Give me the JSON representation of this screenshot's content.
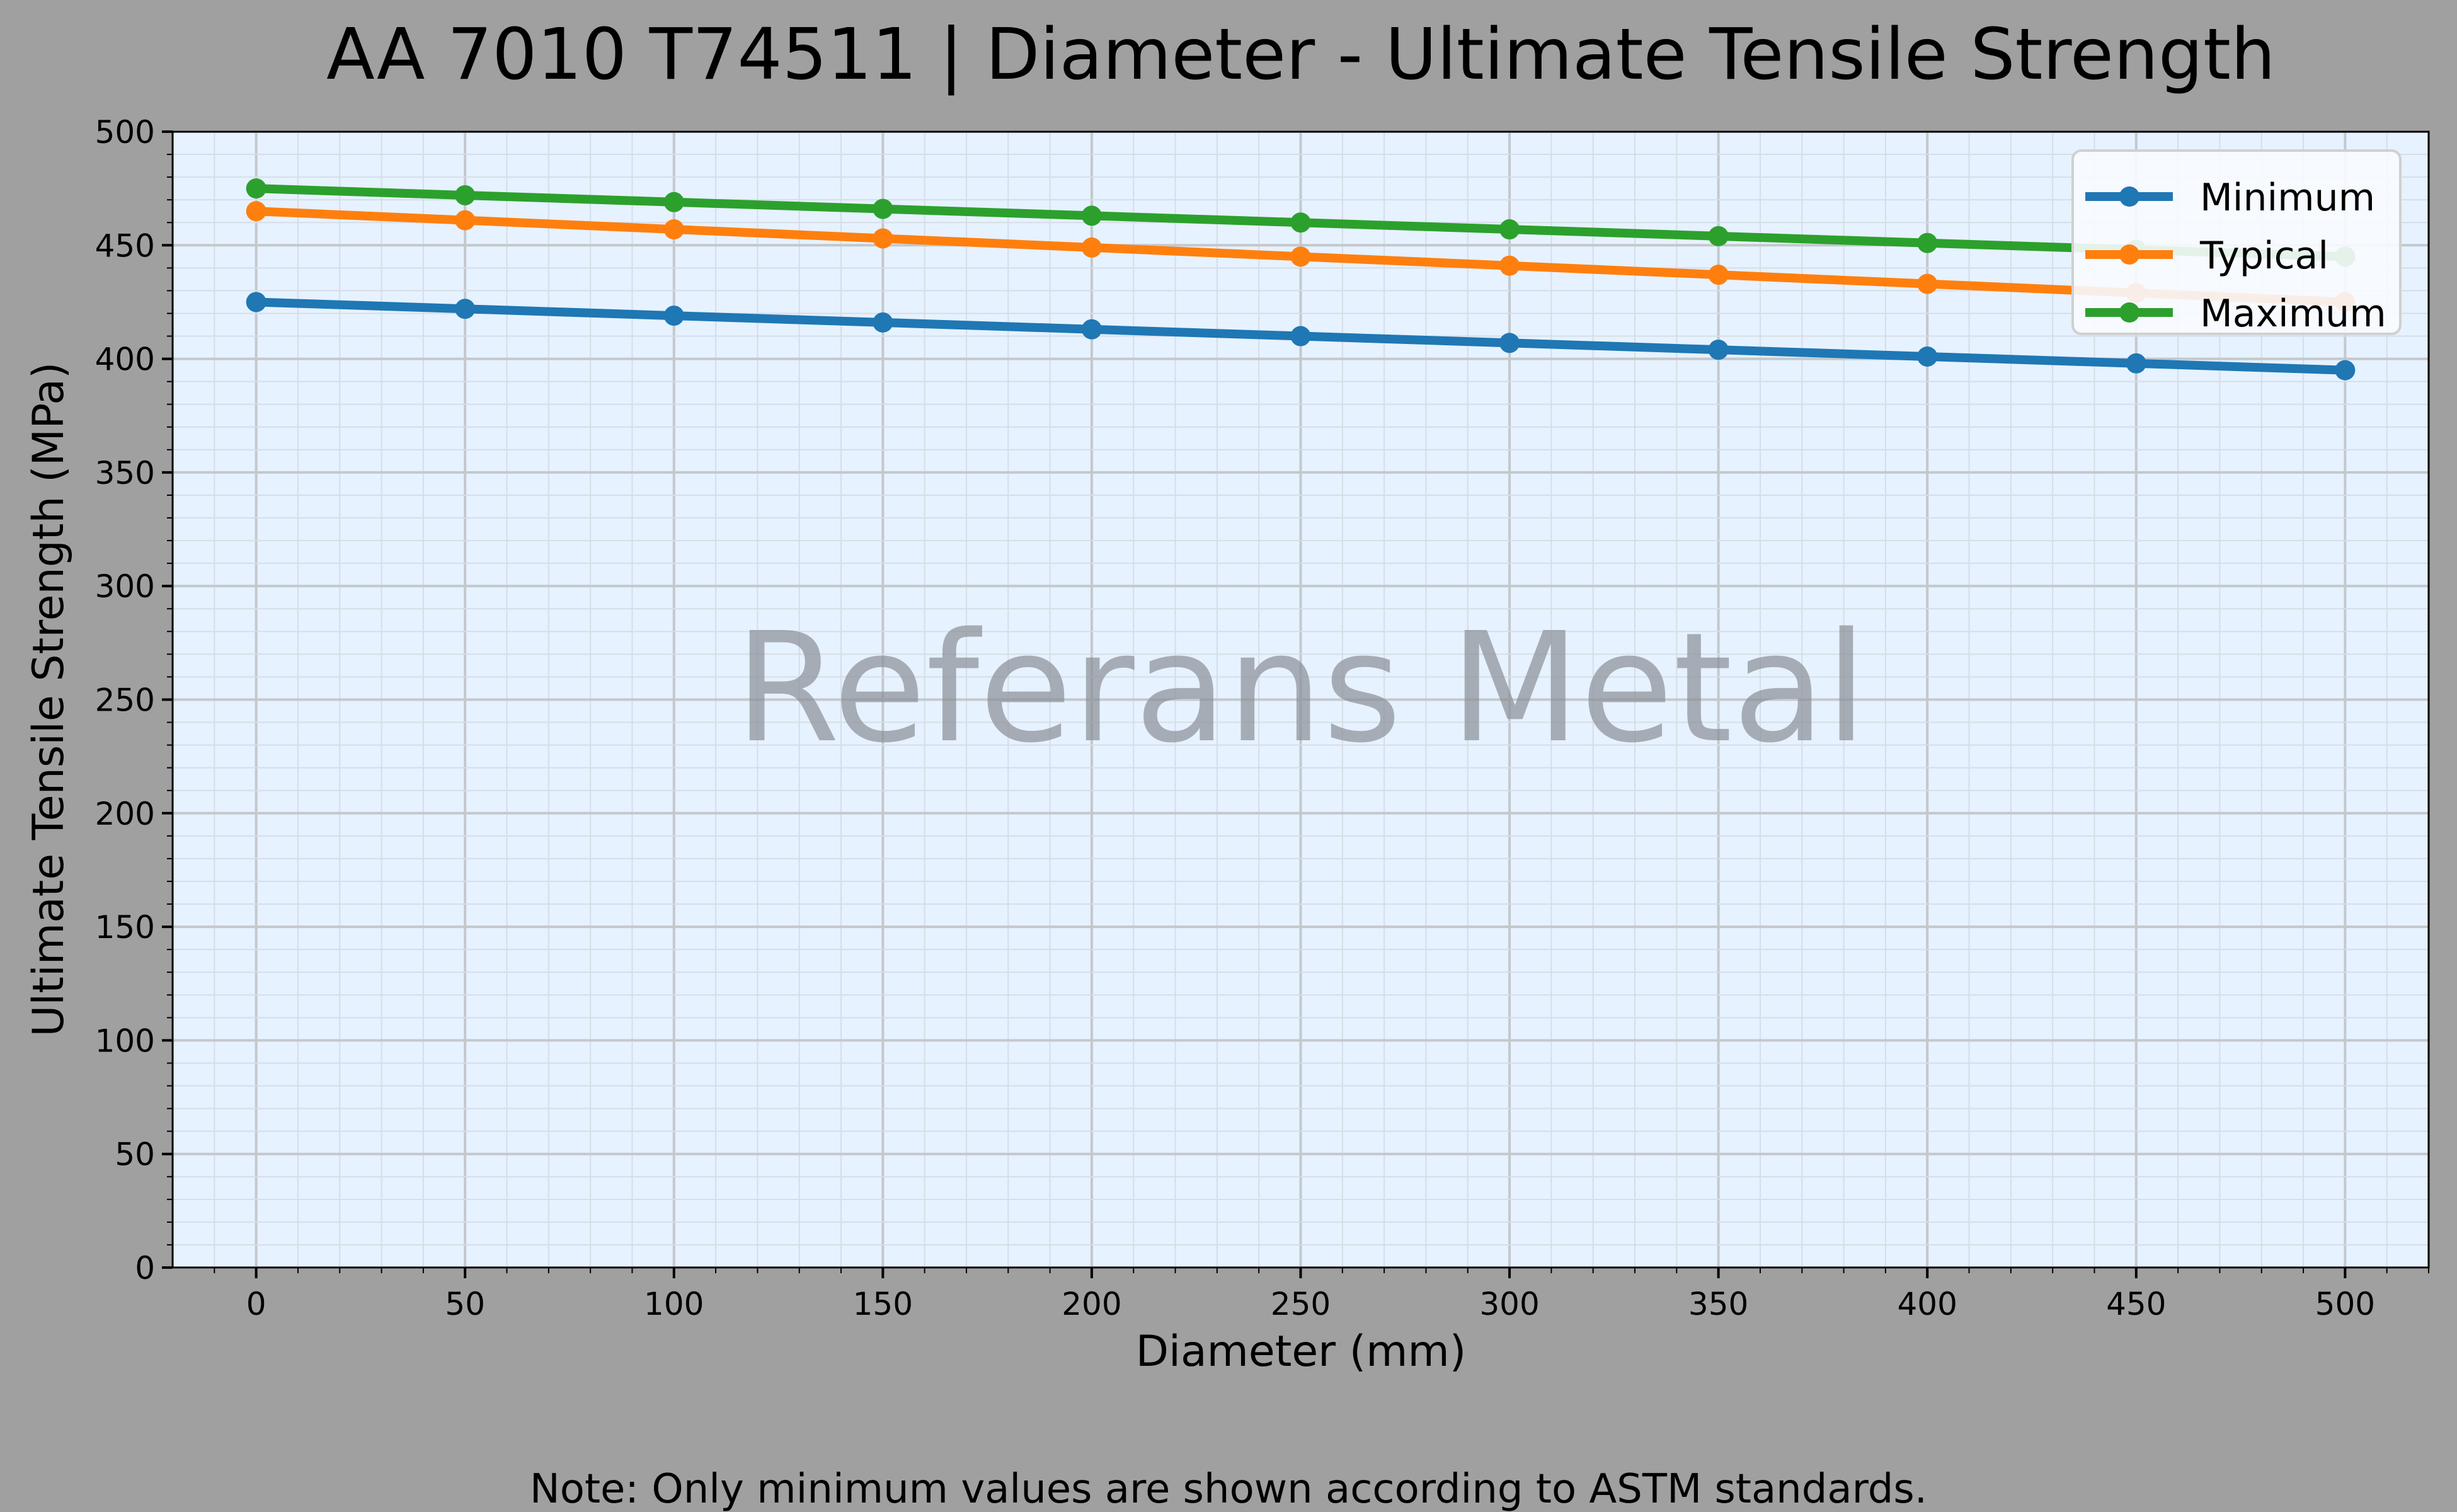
{
  "chart_data": {
    "type": "line",
    "title": "AA 7010 T74511 | Diameter - Ultimate Tensile Strength",
    "xlabel": "Diameter (mm)",
    "ylabel": "Ultimate Tensile Strength (MPa)",
    "x": [
      0,
      50,
      100,
      150,
      200,
      250,
      300,
      350,
      400,
      450,
      500
    ],
    "series": [
      {
        "name": "Minimum",
        "color": "#1f77b4",
        "values": [
          425,
          422,
          419,
          416,
          413,
          410,
          407,
          404,
          401,
          398,
          395
        ]
      },
      {
        "name": "Typical",
        "color": "#ff7f0e",
        "values": [
          465,
          461,
          457,
          453,
          449,
          445,
          441,
          437,
          433,
          429,
          425
        ]
      },
      {
        "name": "Maximum",
        "color": "#2ca02c",
        "values": [
          475,
          472,
          469,
          466,
          463,
          460,
          457,
          454,
          451,
          448,
          445
        ]
      }
    ],
    "xlim": [
      -20,
      520
    ],
    "ylim": [
      0,
      500
    ],
    "xticks": [
      "0",
      "50",
      "100",
      "150",
      "200",
      "250",
      "300",
      "350",
      "400",
      "450",
      "500"
    ],
    "yticks": [
      "0",
      "50",
      "100",
      "150",
      "200",
      "250",
      "300",
      "350",
      "400",
      "450",
      "500"
    ],
    "grid": true,
    "minor_grid": true,
    "legend_position": "top-right",
    "watermark": "Referans Metal",
    "note": "Note: Only minimum values are shown according to ASTM standards.",
    "figure_background": "#a0a0a0",
    "plot_background": "#e6f2ff"
  }
}
